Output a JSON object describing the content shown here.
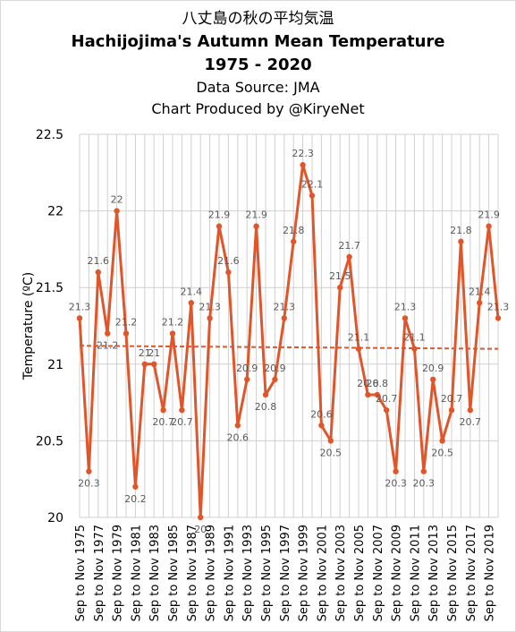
{
  "titles": {
    "jp": "八丈島の秋の平均気温",
    "main": "Hachijojima's Autumn Mean Temperature",
    "years": "1975 - 2020",
    "source": "Data Source: JMA",
    "credit": "Chart Produced by @KiryeNet"
  },
  "colors": {
    "series": "#e0562a",
    "trend": "#e0562a",
    "grid": "#d0d0d0"
  },
  "chart_data": {
    "type": "line",
    "ylabel": "Temperature (ºC)",
    "ylim": [
      20,
      22.5
    ],
    "yticks": [
      "20",
      "20.5",
      "21",
      "21.5",
      "22",
      "22.5"
    ],
    "grid": true,
    "x": [
      "Sep to Nov 1975",
      "Sep to Nov 1976",
      "Sep to Nov 1977",
      "Sep to Nov 1978",
      "Sep to Nov 1979",
      "Sep to Nov 1980",
      "Sep to Nov 1981",
      "Sep to Nov 1982",
      "Sep to Nov 1983",
      "Sep to Nov 1984",
      "Sep to Nov 1985",
      "Sep to Nov 1986",
      "Sep to Nov 1987",
      "Sep to Nov 1988",
      "Sep to Nov 1989",
      "Sep to Nov 1990",
      "Sep to Nov 1991",
      "Sep to Nov 1992",
      "Sep to Nov 1993",
      "Sep to Nov 1994",
      "Sep to Nov 1995",
      "Sep to Nov 1996",
      "Sep to Nov 1997",
      "Sep to Nov 1998",
      "Sep to Nov 1999",
      "Sep to Nov 2000",
      "Sep to Nov 2001",
      "Sep to Nov 2002",
      "Sep to Nov 2003",
      "Sep to Nov 2004",
      "Sep to Nov 2005",
      "Sep to Nov 2006",
      "Sep to Nov 2007",
      "Sep to Nov 2008",
      "Sep to Nov 2009",
      "Sep to Nov 2010",
      "Sep to Nov 2011",
      "Sep to Nov 2012",
      "Sep to Nov 2013",
      "Sep to Nov 2014",
      "Sep to Nov 2015",
      "Sep to Nov 2016",
      "Sep to Nov 2017",
      "Sep to Nov 2018",
      "Sep to Nov 2019",
      "Sep to Nov 2020"
    ],
    "xtick_labels": [
      "Sep to Nov 1975",
      "Sep to Nov 1977",
      "Sep to Nov 1979",
      "Sep to Nov 1981",
      "Sep to Nov 1983",
      "Sep to Nov 1985",
      "Sep to Nov 1987",
      "Sep to Nov 1989",
      "Sep to Nov 1991",
      "Sep to Nov 1993",
      "Sep to Nov 1995",
      "Sep to Nov 1997",
      "Sep to Nov 1999",
      "Sep to Nov 2001",
      "Sep to Nov 2003",
      "Sep to Nov 2005",
      "Sep to Nov 2007",
      "Sep to Nov 2009",
      "Sep to Nov 2011",
      "Sep to Nov 2013",
      "Sep to Nov 2015",
      "Sep to Nov 2017",
      "Sep to Nov 2019"
    ],
    "series": [
      {
        "values": [
          21.3,
          20.3,
          21.6,
          21.2,
          22,
          21.2,
          20.2,
          21,
          21,
          20.7,
          21.2,
          20.7,
          21.4,
          20,
          21.3,
          21.9,
          21.6,
          20.6,
          20.9,
          21.9,
          20.8,
          20.9,
          21.3,
          21.8,
          22.3,
          22.1,
          20.6,
          20.5,
          21.5,
          21.7,
          21.1,
          20.8,
          20.8,
          20.7,
          20.3,
          21.3,
          21.1,
          20.3,
          20.9,
          20.5,
          20.7,
          21.8,
          20.7,
          21.4,
          21.9,
          21.3
        ],
        "labels": [
          "21.3",
          "20.3",
          "21.6",
          "21.2",
          "22",
          "21.2",
          "20.2",
          "21",
          "21",
          "20.7",
          "21.2",
          "20.7",
          "21.4",
          "20",
          "21.3",
          "21.9",
          "21.6",
          "20.6",
          "20.9",
          "21.9",
          "20.8",
          "20.9",
          "21.3",
          "21.8",
          "22.3",
          "22.1",
          "20.6",
          "20.5",
          "21.5",
          "21.7",
          "21.1",
          "20.8",
          "20.8",
          "20.7",
          "20.3",
          "21.3",
          "21.1",
          "20.3",
          "20.9",
          "20.5",
          "20.7",
          "21.8",
          "20.7",
          "21.4",
          "21.9",
          "21.3"
        ]
      }
    ],
    "trendline": {
      "start": 21.12,
      "end": 21.1
    }
  }
}
